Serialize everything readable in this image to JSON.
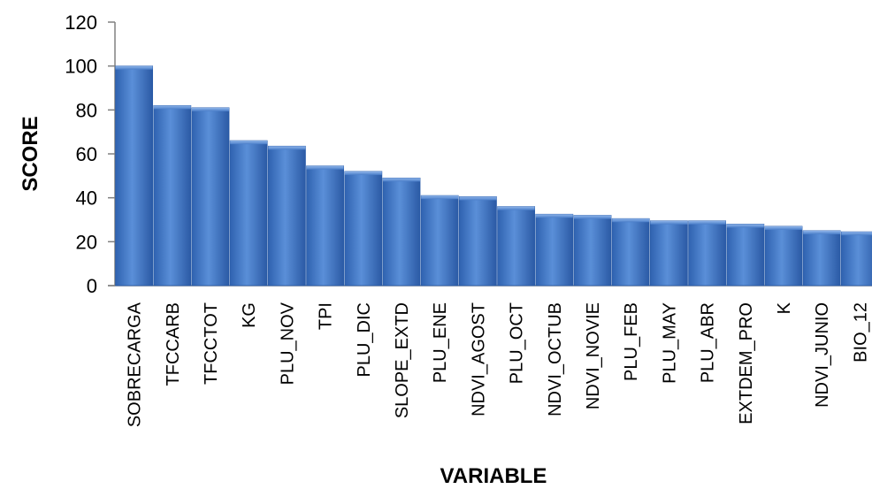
{
  "chart_data": {
    "type": "bar",
    "xlabel": "VARIABLE",
    "ylabel": "SCORE",
    "ylim": [
      0,
      120
    ],
    "yticks": [
      0,
      20,
      40,
      60,
      80,
      100,
      120
    ],
    "grid": false,
    "legend": "none",
    "categories": [
      "SOBRECARGA",
      "TFCCARB",
      "TFCCTOT",
      "KG",
      "PLU_NOV",
      "TPI",
      "PLU_DIC",
      "SLOPE_EXTD",
      "PLU_ENE",
      "NDVI_AGOST",
      "PLU_OCT",
      "NDVI_OCTUB",
      "NDVI_NOVIE",
      "PLU_FEB",
      "PLU_MAY",
      "PLU_ABR",
      "EXTDEM_PRO",
      "K",
      "NDVI_JUNIO",
      "BIO_12"
    ],
    "values": [
      100,
      82,
      81,
      66,
      63.5,
      54.5,
      52,
      49,
      41,
      40.5,
      36,
      32.5,
      32,
      30.5,
      29.5,
      29.5,
      28,
      27,
      25,
      24.5
    ],
    "colors": {
      "bar": "#4a7ec9",
      "bar_dark": "#2a5ca8",
      "bar_light": "#7ea8e3"
    }
  }
}
